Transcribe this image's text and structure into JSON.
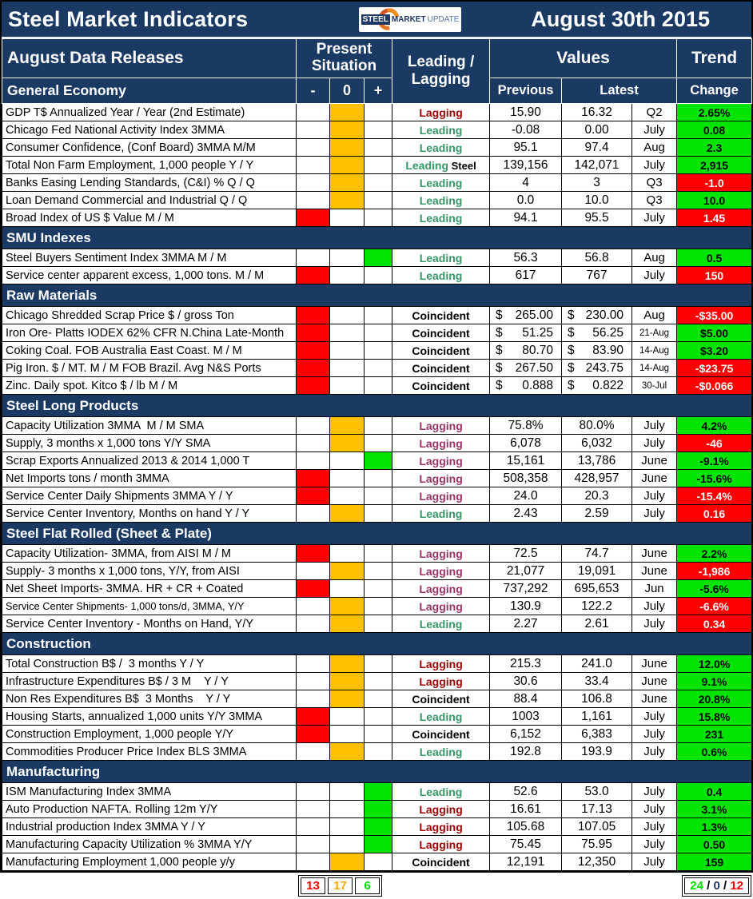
{
  "title_bar": {
    "title": "Steel Market Indicators",
    "date": "August 30th 2015",
    "logo": {
      "steel": "STEEL",
      "market": "MARKET",
      "update": "UPDATE"
    }
  },
  "header": {
    "releases": "August Data Releases",
    "present_situation": "Present Situation",
    "leading_lagging": "Leading / Lagging",
    "values": "Values",
    "trend": "Trend",
    "general_economy": "General Economy",
    "minus": "-",
    "zero": "0",
    "plus": "+",
    "previous": "Previous",
    "latest": "Latest",
    "change": "Change"
  },
  "colors": {
    "navy": "#1A3A64",
    "situation_red": "#FF0000",
    "situation_orange": "#FFC000",
    "situation_green": "#00E400",
    "leading_green": "#339966",
    "lagging_red": "#990000",
    "lagging_purple": "#993366",
    "coincident_black": "#000000",
    "trend_up_bg": "#00E400",
    "trend_up_text": "#000000",
    "trend_down_bg": "#FF0000",
    "trend_down_text": "#FFFFFF",
    "footer_red": "#FF0000",
    "footer_orange": "#FFA500",
    "footer_green": "#00DD00",
    "footer_navy": "#1F3864",
    "footer_black": "#000000"
  },
  "sections": [
    {
      "title": "General Economy",
      "title_row": false,
      "rows": [
        {
          "label": "GDP T$ Annualized Year / Year (2nd Estimate)",
          "situation": "zero",
          "indicator": "Lagging",
          "indicator_style": "lagging-red",
          "previous": "15.90",
          "latest": "16.32",
          "period": "Q2",
          "change": "2.65%",
          "change_style": "up"
        },
        {
          "label": "Chicago Fed National Activity Index 3MMA",
          "situation": "zero",
          "indicator": "Leading",
          "indicator_style": "leading",
          "previous": "-0.08",
          "latest": "0.00",
          "period": "July",
          "change": "0.08",
          "change_style": "up"
        },
        {
          "label": "Consumer Confidence, (Conf Board) 3MMA M/M",
          "situation": "zero",
          "indicator": "Leading",
          "indicator_style": "leading",
          "previous": "95.1",
          "latest": "97.4",
          "period": "Aug",
          "change": "2.3",
          "change_style": "up"
        },
        {
          "label": "Total Non Farm Employment, 1,000 people Y / Y",
          "situation": "zero",
          "indicator": "Leading",
          "indicator_suffix": " Steel",
          "indicator_style": "leading",
          "previous": "139,156",
          "latest": "142,071",
          "period": "July",
          "change": "2,915",
          "change_style": "up"
        },
        {
          "label": "Banks Easing Lending Standards, (C&I) % Q / Q",
          "situation": "zero",
          "indicator": "Leading",
          "indicator_style": "leading",
          "previous": "4",
          "latest": "3",
          "period": "Q3",
          "change": "-1.0",
          "change_style": "down"
        },
        {
          "label": "Loan Demand Commercial and Industrial Q / Q",
          "situation": "zero",
          "indicator": "Leading",
          "indicator_style": "leading",
          "previous": "0.0",
          "latest": "10.0",
          "period": "Q3",
          "change": "10.0",
          "change_style": "up"
        },
        {
          "label": "Broad Index of US $ Value M / M",
          "situation": "minus",
          "indicator": "Leading",
          "indicator_style": "leading",
          "previous": "94.1",
          "latest": "95.5",
          "period": "July",
          "change": "1.45",
          "change_style": "down"
        }
      ]
    },
    {
      "title": "SMU Indexes",
      "title_row": true,
      "rows": [
        {
          "label": "Steel Buyers Sentiment Index 3MMA M / M",
          "situation": "plus",
          "indicator": "Leading",
          "indicator_style": "leading",
          "previous": "56.3",
          "latest": "56.8",
          "period": "Aug",
          "change": "0.5",
          "change_style": "up"
        },
        {
          "label": "Service center apparent excess, 1,000 tons. M / M",
          "situation": "minus",
          "indicator": "Leading",
          "indicator_style": "leading",
          "previous": "617",
          "latest": "767",
          "period": "July",
          "change": "150",
          "change_style": "down"
        }
      ]
    },
    {
      "title": "Raw Materials",
      "title_row": true,
      "rows": [
        {
          "label": "Chicago Shredded Scrap Price $ / gross Ton",
          "situation": "minus",
          "indicator": "Coincident",
          "indicator_style": "coincident",
          "currency": true,
          "previous": "265.00",
          "latest": "230.00",
          "period": "Aug",
          "change": "-$35.00",
          "change_style": "down"
        },
        {
          "label": "Iron Ore- Platts IODEX 62% CFR N.China Late-Month",
          "situation": "minus",
          "indicator": "Coincident",
          "indicator_style": "coincident",
          "currency": true,
          "previous": "51.25",
          "latest": "56.25",
          "period": "21-Aug",
          "period_small": true,
          "change": "$5.00",
          "change_style": "up"
        },
        {
          "label": "Coking Coal. FOB Australia East Coast. M / M",
          "situation": "minus",
          "indicator": "Coincident",
          "indicator_style": "coincident",
          "currency": true,
          "previous": "80.70",
          "latest": "83.90",
          "period": "14-Aug",
          "period_small": true,
          "change": "$3.20",
          "change_style": "up"
        },
        {
          "label": "Pig Iron. $ / MT. M / M FOB Brazil. Avg N&S Ports",
          "situation": "minus",
          "indicator": "Coincident",
          "indicator_style": "coincident",
          "currency": true,
          "previous": "267.50",
          "latest": "243.75",
          "period": "14-Aug",
          "period_small": true,
          "change": "-$23.75",
          "change_style": "down"
        },
        {
          "label": "Zinc. Daily spot. Kitco $ / lb M / M",
          "situation": "minus",
          "indicator": "Coincident",
          "indicator_style": "coincident",
          "currency": true,
          "previous": "0.888",
          "latest": "0.822",
          "period": "30-Jul",
          "period_small": true,
          "change": "-$0.066",
          "change_style": "down"
        }
      ]
    },
    {
      "title": "Steel Long Products",
      "title_row": true,
      "rows": [
        {
          "label": "Capacity Utilization 3MMA  M / M SMA",
          "situation": "zero",
          "indicator": "Lagging",
          "indicator_style": "lagging-purple",
          "previous": "75.8%",
          "latest": "80.0%",
          "period": "July",
          "change": "4.2%",
          "change_style": "up"
        },
        {
          "label": "Supply, 3 months x 1,000 tons Y/Y SMA",
          "situation": "zero",
          "indicator": "Lagging",
          "indicator_style": "lagging-purple",
          "previous": "6,078",
          "latest": "6,032",
          "period": "July",
          "change": "-46",
          "change_style": "down"
        },
        {
          "label": "Scrap Exports Annualized 2013 & 2014 1,000 T",
          "situation": "plus",
          "indicator": "Lagging",
          "indicator_style": "lagging-purple",
          "previous": "15,161",
          "latest": "13,786",
          "period": "June",
          "change": "-9.1%",
          "change_style": "up"
        },
        {
          "label": "Net Imports tons / month 3MMA",
          "situation": "minus",
          "indicator": "Lagging",
          "indicator_style": "lagging-purple",
          "previous": "508,358",
          "latest": "428,957",
          "period": "June",
          "change": "-15.6%",
          "change_style": "up"
        },
        {
          "label": "Service Center Daily Shipments 3MMA Y / Y",
          "situation": "minus",
          "indicator": "Lagging",
          "indicator_style": "lagging-purple",
          "previous": "24.0",
          "latest": "20.3",
          "period": "July",
          "change": "-15.4%",
          "change_style": "down"
        },
        {
          "label": "Service Center Inventory, Months on hand Y / Y",
          "situation": "zero",
          "indicator": "Leading",
          "indicator_style": "leading",
          "previous": "2.43",
          "latest": "2.59",
          "period": "July",
          "change": "0.16",
          "change_style": "down"
        }
      ]
    },
    {
      "title": "Steel Flat Rolled (Sheet & Plate)",
      "title_row": true,
      "rows": [
        {
          "label": "Capacity Utilization- 3MMA, from AISI M / M",
          "situation": "minus",
          "indicator": "Lagging",
          "indicator_style": "lagging-purple",
          "previous": "72.5",
          "latest": "74.7",
          "period": "June",
          "change": "2.2%",
          "change_style": "up"
        },
        {
          "label": "Supply- 3 months x 1,000 tons, Y/Y, from AISI",
          "situation": "zero",
          "indicator": "Lagging",
          "indicator_style": "lagging-purple",
          "previous": "21,077",
          "latest": "19,091",
          "period": "June",
          "change": "-1,986",
          "change_style": "down"
        },
        {
          "label": "Net Sheet Imports- 3MMA. HR + CR + Coated",
          "situation": "minus",
          "indicator": "Lagging",
          "indicator_style": "lagging-purple",
          "previous": "737,292",
          "latest": "695,653",
          "period": "Jun",
          "change": "-5.6%",
          "change_style": "up"
        },
        {
          "label": "Service Center Shipments- 1,000 tons/d, 3MMA, Y/Y",
          "label_small": true,
          "situation": "zero",
          "indicator": "Lagging",
          "indicator_style": "lagging-purple",
          "previous": "130.9",
          "latest": "122.2",
          "period": "July",
          "change": "-6.6%",
          "change_style": "down"
        },
        {
          "label": "Service Center Inventory - Months on Hand, Y/Y",
          "situation": "zero",
          "indicator": "Leading",
          "indicator_style": "leading",
          "previous": "2.27",
          "latest": "2.61",
          "period": "July",
          "change": "0.34",
          "change_style": "down"
        }
      ]
    },
    {
      "title": "Construction",
      "title_row": true,
      "rows": [
        {
          "label": "Total Construction B$ /  3 months Y / Y",
          "situation": "zero",
          "indicator": "Lagging",
          "indicator_style": "lagging-red",
          "previous": "215.3",
          "latest": "241.0",
          "period": "June",
          "change": "12.0%",
          "change_style": "up"
        },
        {
          "label": "Infrastructure Expenditures B$ / 3 M    Y / Y",
          "situation": "zero",
          "indicator": "Lagging",
          "indicator_style": "lagging-red",
          "previous": "30.6",
          "latest": "33.4",
          "period": "June",
          "change": "9.1%",
          "change_style": "up"
        },
        {
          "label": "Non Res Expenditures B$  3 Months    Y / Y",
          "situation": "zero",
          "indicator": "Coincident",
          "indicator_style": "coincident",
          "previous": "88.4",
          "latest": "106.8",
          "period": "June",
          "change": "20.8%",
          "change_style": "up"
        },
        {
          "label": "Housing Starts, annualized 1,000 units Y/Y 3MMA",
          "situation": "minus",
          "indicator": "Leading",
          "indicator_style": "leading",
          "previous": "1003",
          "latest": "1,161",
          "period": "July",
          "change": "15.8%",
          "change_style": "up"
        },
        {
          "label": "Construction Employment, 1,000 people Y/Y",
          "situation": "minus",
          "indicator": "Coincident",
          "indicator_style": "coincident",
          "previous": "6,152",
          "latest": "6,383",
          "period": "July",
          "change": "231",
          "change_style": "up"
        },
        {
          "label": "Commodities Producer Price Index BLS 3MMA",
          "situation": "zero",
          "indicator": "Leading",
          "indicator_style": "leading",
          "previous": "192.8",
          "latest": "193.9",
          "period": "July",
          "change": "0.6%",
          "change_style": "up"
        }
      ]
    },
    {
      "title": "Manufacturing",
      "title_row": true,
      "rows": [
        {
          "label": "ISM Manufacturing Index 3MMA",
          "situation": "plus",
          "indicator": "Leading",
          "indicator_style": "leading",
          "previous": "52.6",
          "latest": "53.0",
          "period": "July",
          "change": "0.4",
          "change_style": "up"
        },
        {
          "label": "Auto Production NAFTA. Rolling 12m Y/Y",
          "situation": "plus",
          "indicator": "Lagging",
          "indicator_style": "lagging-red",
          "previous": "16.61",
          "latest": "17.13",
          "period": "July",
          "change": "3.1%",
          "change_style": "up"
        },
        {
          "label": "Industrial production Index 3MMA Y / Y",
          "situation": "plus",
          "indicator": "Lagging",
          "indicator_style": "lagging-red",
          "previous": "105.68",
          "latest": "107.05",
          "period": "July",
          "change": "1.3%",
          "change_style": "up"
        },
        {
          "label": "Manufacturing Capacity Utilization % 3MMA Y/Y",
          "situation": "plus",
          "indicator": "Lagging",
          "indicator_style": "lagging-red",
          "previous": "75.45",
          "latest": "75.95",
          "period": "July",
          "change": "0.50",
          "change_style": "up"
        },
        {
          "label": "Manufacturing Employment 1,000 people y/y",
          "situation": "zero",
          "indicator": "Coincident",
          "indicator_style": "coincident",
          "previous": "12,191",
          "latest": "12,350",
          "period": "July",
          "change": "159",
          "change_style": "up"
        }
      ]
    }
  ],
  "footer": {
    "situation_counts": [
      {
        "value": "13",
        "color_key": "footer_red"
      },
      {
        "value": "17",
        "color_key": "footer_orange"
      },
      {
        "value": "6",
        "color_key": "footer_green"
      }
    ],
    "trend_summary": [
      {
        "value": "24",
        "color_key": "footer_green"
      },
      {
        "value": " / ",
        "color_key": "footer_black"
      },
      {
        "value": "0",
        "color_key": "footer_navy"
      },
      {
        "value": " / ",
        "color_key": "footer_black"
      },
      {
        "value": "12",
        "color_key": "footer_red"
      }
    ]
  }
}
